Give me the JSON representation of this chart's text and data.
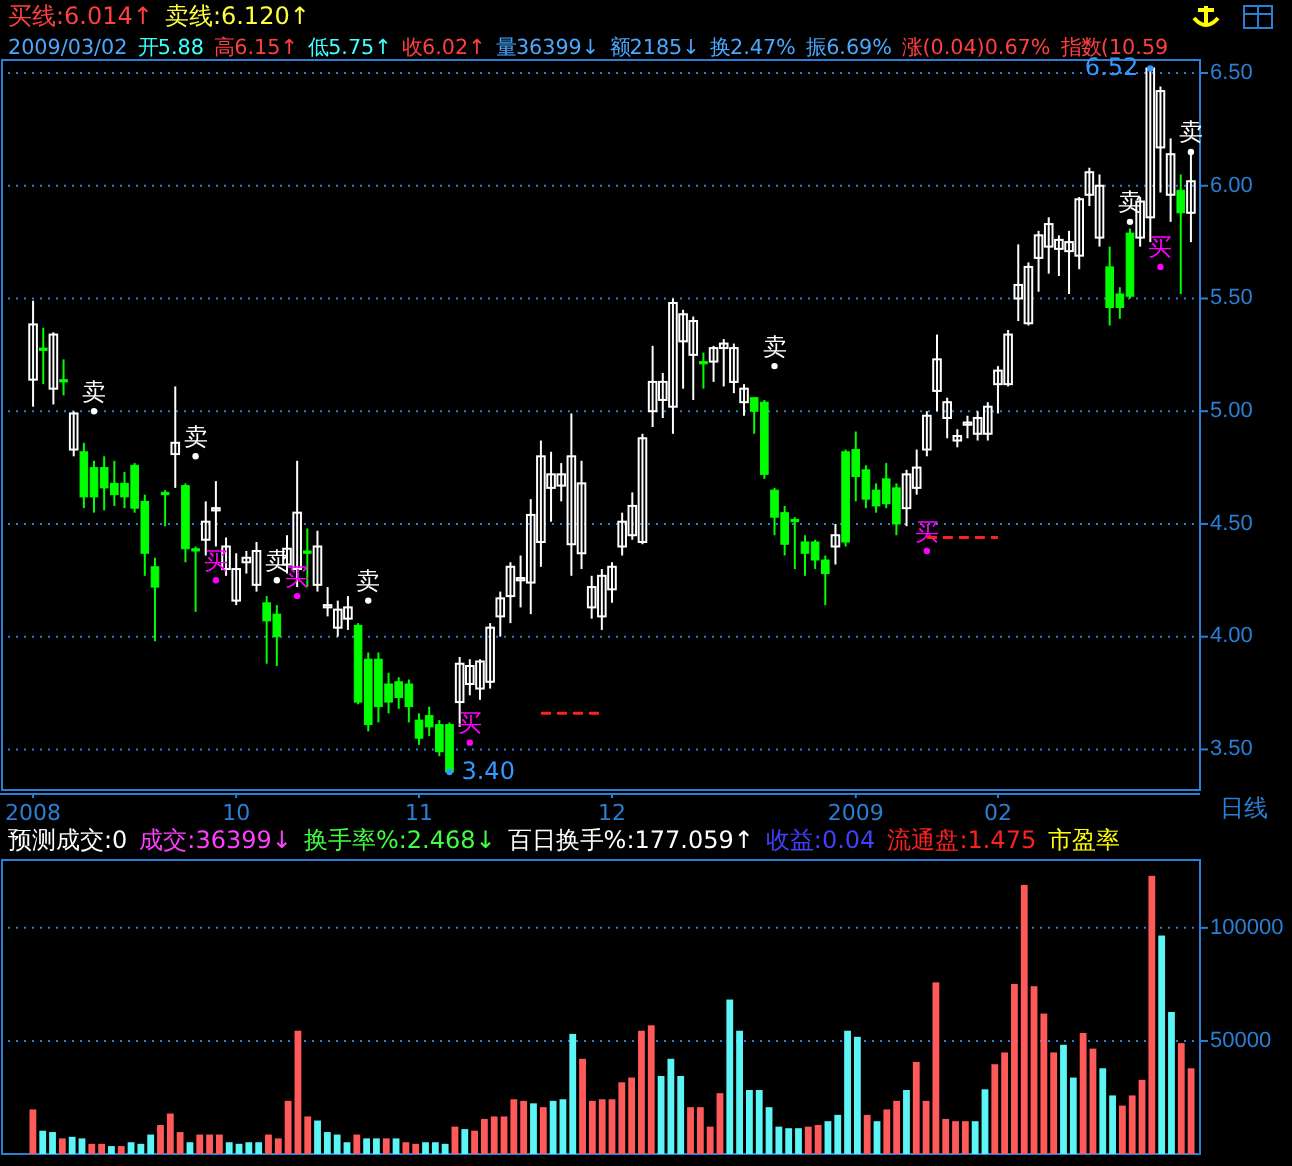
{
  "chart_data": [
    {
      "type": "candlestick",
      "categories": [
        "2008",
        null,
        null,
        null,
        null,
        null,
        null,
        null,
        null,
        null,
        null,
        null,
        null,
        null,
        null,
        null,
        null,
        null,
        null,
        null,
        "10",
        null,
        null,
        null,
        null,
        null,
        null,
        null,
        null,
        null,
        null,
        null,
        null,
        null,
        null,
        null,
        null,
        null,
        "11",
        null,
        null,
        null,
        null,
        null,
        null,
        null,
        null,
        null,
        null,
        null,
        null,
        null,
        null,
        null,
        null,
        null,
        null,
        "12",
        null,
        null,
        null,
        null,
        null,
        null,
        null,
        null,
        null,
        null,
        null,
        null,
        null,
        null,
        null,
        null,
        null,
        null,
        null,
        null,
        null,
        null,
        null,
        "2009",
        null,
        null,
        null,
        null,
        null,
        null,
        null,
        null,
        null,
        null,
        null,
        null,
        null,
        "02",
        null,
        null,
        null,
        null,
        null,
        null,
        null,
        null,
        null,
        null,
        null,
        null,
        null,
        null,
        null,
        null,
        null,
        null,
        null
      ],
      "ohlc": [
        [
          5.14,
          5.49,
          5.02,
          5.385
        ],
        [
          5.28,
          5.37,
          5.12,
          5.27
        ],
        [
          5.1,
          5.35,
          5.03,
          5.34
        ],
        [
          5.14,
          5.23,
          5.07,
          5.13
        ],
        [
          4.83,
          5.0,
          4.8,
          4.99
        ],
        [
          4.82,
          4.86,
          4.57,
          4.62
        ],
        [
          4.75,
          4.78,
          4.55,
          4.62
        ],
        [
          4.75,
          4.8,
          4.56,
          4.66
        ],
        [
          4.68,
          4.78,
          4.58,
          4.63
        ],
        [
          4.68,
          4.73,
          4.57,
          4.62
        ],
        [
          4.76,
          4.77,
          4.55,
          4.57
        ],
        [
          4.6,
          4.63,
          4.27,
          4.37
        ],
        [
          4.31,
          4.35,
          3.98,
          4.22
        ],
        [
          4.64,
          4.65,
          4.49,
          4.63
        ],
        [
          4.81,
          5.11,
          4.66,
          4.86
        ],
        [
          4.67,
          4.68,
          4.33,
          4.39
        ],
        [
          4.39,
          4.4,
          4.11,
          4.38
        ],
        [
          4.43,
          4.6,
          4.36,
          4.51
        ],
        [
          4.56,
          4.69,
          4.4,
          4.57
        ],
        [
          4.3,
          4.44,
          4.27,
          4.4
        ],
        [
          4.16,
          4.37,
          4.14,
          4.3
        ],
        [
          4.33,
          4.38,
          4.28,
          4.35
        ],
        [
          4.23,
          4.42,
          4.2,
          4.38
        ],
        [
          4.15,
          4.18,
          3.88,
          4.07
        ],
        [
          4.1,
          4.14,
          3.87,
          4.0
        ],
        [
          4.32,
          4.45,
          4.28,
          4.39
        ],
        [
          4.3,
          4.78,
          4.22,
          4.55
        ],
        [
          4.38,
          4.48,
          4.22,
          4.37
        ],
        [
          4.23,
          4.47,
          4.2,
          4.4
        ],
        [
          4.13,
          4.22,
          4.09,
          4.14
        ],
        [
          4.04,
          4.16,
          4.0,
          4.12
        ],
        [
          4.08,
          4.18,
          4.03,
          4.13
        ],
        [
          4.05,
          4.06,
          3.7,
          3.71
        ],
        [
          3.9,
          3.93,
          3.58,
          3.61
        ],
        [
          3.9,
          3.93,
          3.62,
          3.69
        ],
        [
          3.79,
          3.84,
          3.66,
          3.71
        ],
        [
          3.8,
          3.82,
          3.68,
          3.73
        ],
        [
          3.79,
          3.81,
          3.62,
          3.69
        ],
        [
          3.63,
          3.66,
          3.52,
          3.55
        ],
        [
          3.65,
          3.69,
          3.56,
          3.6
        ],
        [
          3.61,
          3.63,
          3.47,
          3.49
        ],
        [
          3.61,
          3.62,
          3.4,
          3.4
        ],
        [
          3.71,
          3.91,
          3.6,
          3.88
        ],
        [
          3.79,
          3.9,
          3.74,
          3.87
        ],
        [
          3.77,
          3.9,
          3.72,
          3.89
        ],
        [
          3.8,
          4.06,
          3.77,
          4.04
        ],
        [
          4.09,
          4.2,
          4.0,
          4.17
        ],
        [
          4.18,
          4.33,
          4.06,
          4.31
        ],
        [
          4.25,
          4.36,
          4.13,
          4.26
        ],
        [
          4.24,
          4.61,
          4.1,
          4.54
        ],
        [
          4.42,
          4.87,
          4.31,
          4.8
        ],
        [
          4.66,
          4.82,
          4.51,
          4.72
        ],
        [
          4.67,
          4.77,
          4.6,
          4.72
        ],
        [
          4.41,
          4.99,
          4.27,
          4.8
        ],
        [
          4.37,
          4.78,
          4.3,
          4.68
        ],
        [
          4.13,
          4.27,
          4.08,
          4.22
        ],
        [
          4.09,
          4.3,
          4.03,
          4.27
        ],
        [
          4.21,
          4.33,
          4.15,
          4.31
        ],
        [
          4.4,
          4.55,
          4.36,
          4.51
        ],
        [
          4.45,
          4.64,
          4.43,
          4.58
        ],
        [
          4.42,
          4.9,
          4.41,
          4.88
        ],
        [
          5.0,
          5.29,
          4.93,
          5.13
        ],
        [
          5.05,
          5.17,
          4.97,
          5.13
        ],
        [
          5.02,
          5.5,
          4.9,
          5.48
        ],
        [
          5.31,
          5.45,
          5.1,
          5.43
        ],
        [
          5.25,
          5.42,
          5.05,
          5.4
        ],
        [
          5.22,
          5.26,
          5.1,
          5.21
        ],
        [
          5.22,
          5.29,
          5.13,
          5.28
        ],
        [
          5.28,
          5.32,
          5.11,
          5.3
        ],
        [
          5.13,
          5.3,
          5.08,
          5.28
        ],
        [
          5.04,
          5.12,
          4.98,
          5.1
        ],
        [
          5.06,
          5.06,
          4.9,
          5.0
        ],
        [
          5.04,
          5.05,
          4.7,
          4.72
        ],
        [
          4.65,
          4.66,
          4.45,
          4.53
        ],
        [
          4.55,
          4.58,
          4.36,
          4.41
        ],
        [
          4.52,
          4.53,
          4.3,
          4.51
        ],
        [
          4.42,
          4.45,
          4.27,
          4.37
        ],
        [
          4.42,
          4.43,
          4.3,
          4.34
        ],
        [
          4.34,
          4.36,
          4.14,
          4.28
        ],
        [
          4.4,
          4.5,
          4.32,
          4.45
        ],
        [
          4.82,
          4.83,
          4.4,
          4.42
        ],
        [
          4.83,
          4.91,
          4.6,
          4.71
        ],
        [
          4.74,
          4.76,
          4.57,
          4.61
        ],
        [
          4.65,
          4.68,
          4.55,
          4.58
        ],
        [
          4.7,
          4.77,
          4.57,
          4.59
        ],
        [
          4.66,
          4.68,
          4.45,
          4.5
        ],
        [
          4.57,
          4.74,
          4.49,
          4.72
        ],
        [
          4.66,
          4.83,
          4.63,
          4.75
        ],
        [
          4.83,
          5.0,
          4.8,
          4.98
        ],
        [
          5.09,
          5.34,
          5.0,
          5.23
        ],
        [
          4.97,
          5.06,
          4.88,
          5.04
        ],
        [
          4.87,
          4.92,
          4.84,
          4.89
        ],
        [
          4.94,
          4.98,
          4.88,
          4.95
        ],
        [
          4.9,
          5.0,
          4.87,
          4.97
        ],
        [
          4.9,
          5.04,
          4.87,
          5.02
        ],
        [
          5.12,
          5.2,
          4.99,
          5.18
        ],
        [
          5.12,
          5.36,
          5.11,
          5.34
        ],
        [
          5.5,
          5.74,
          5.4,
          5.56
        ],
        [
          5.39,
          5.66,
          5.38,
          5.64
        ],
        [
          5.68,
          5.8,
          5.53,
          5.78
        ],
        [
          5.73,
          5.86,
          5.61,
          5.83
        ],
        [
          5.72,
          5.78,
          5.6,
          5.76
        ],
        [
          5.71,
          5.8,
          5.52,
          5.75
        ],
        [
          5.69,
          5.95,
          5.63,
          5.94
        ],
        [
          5.96,
          6.08,
          5.91,
          6.06
        ],
        [
          5.77,
          6.05,
          5.73,
          6.0
        ],
        [
          5.64,
          5.73,
          5.38,
          5.46
        ],
        [
          5.52,
          5.55,
          5.41,
          5.46
        ],
        [
          5.79,
          5.81,
          5.5,
          5.51
        ],
        [
          5.77,
          5.95,
          5.73,
          5.93
        ],
        [
          5.86,
          6.52,
          5.75,
          6.52
        ],
        [
          6.17,
          6.44,
          5.97,
          6.42
        ],
        [
          5.96,
          6.21,
          5.84,
          6.14
        ],
        [
          5.98,
          6.05,
          5.52,
          5.88
        ],
        [
          5.88,
          6.15,
          5.75,
          6.02
        ]
      ],
      "colors": [
        "#ffffff",
        "#00ff00",
        "#ffffff",
        "#00ff00",
        "#ffffff",
        "#00ff00",
        "#00ff00",
        "#00ff00",
        "#00ff00",
        "#00ff00",
        "#00ff00",
        "#00ff00",
        "#00ff00",
        "#00ff00",
        "#ffffff",
        "#00ff00",
        "#00ff00",
        "#ffffff",
        "#ffffff",
        "#ffffff",
        "#ffffff",
        "#ffffff",
        "#ffffff",
        "#00ff00",
        "#00ff00",
        "#ffffff",
        "#ffffff",
        "#00ff00",
        "#ffffff",
        "#ffffff",
        "#ffffff",
        "#ffffff",
        "#00ff00",
        "#00ff00",
        "#00ff00",
        "#00ff00",
        "#00ff00",
        "#00ff00",
        "#00ff00",
        "#00ff00",
        "#00ff00",
        "#00ff00",
        "#ffffff",
        "#ffffff",
        "#ffffff",
        "#ffffff",
        "#ffffff",
        "#ffffff",
        "#ffffff",
        "#ffffff",
        "#ffffff",
        "#ffffff",
        "#ffffff",
        "#ffffff",
        "#ffffff",
        "#ffffff",
        "#ffffff",
        "#ffffff",
        "#ffffff",
        "#ffffff",
        "#ffffff",
        "#ffffff",
        "#ffffff",
        "#ffffff",
        "#ffffff",
        "#ffffff",
        "#00ff00",
        "#ffffff",
        "#ffffff",
        "#ffffff",
        "#ffffff",
        "#00ff00",
        "#00ff00",
        "#00ff00",
        "#00ff00",
        "#00ff00",
        "#00ff00",
        "#00ff00",
        "#00ff00",
        "#ffffff",
        "#00ff00",
        "#00ff00",
        "#00ff00",
        "#00ff00",
        "#00ff00",
        "#00ff00",
        "#ffffff",
        "#ffffff",
        "#ffffff",
        "#ffffff",
        "#ffffff",
        "#ffffff",
        "#ffffff",
        "#ffffff",
        "#ffffff",
        "#ffffff",
        "#ffffff",
        "#ffffff",
        "#ffffff",
        "#ffffff",
        "#ffffff",
        "#ffffff",
        "#ffffff",
        "#ffffff",
        "#ffffff",
        "#ffffff",
        "#00ff00",
        "#00ff00",
        "#00ff00",
        "#ffffff",
        "#ffffff",
        "#ffffff",
        "#ffffff",
        "#00ff00",
        "#ffffff"
      ],
      "series": [
        {
          "type": "scatter",
          "marker": "circle",
          "color": "#ffffff",
          "values": [
            null,
            null,
            null,
            null,
            null,
            null,
            5.0,
            null,
            null,
            null,
            null,
            null,
            null,
            null,
            null,
            null,
            4.8,
            null,
            null,
            null,
            null,
            null,
            null,
            null,
            4.25,
            null,
            null,
            null,
            null,
            null,
            null,
            null,
            null,
            4.16,
            null,
            null,
            null,
            null,
            null,
            null,
            null,
            null,
            null,
            null,
            null,
            null,
            null,
            null,
            null,
            null,
            null,
            null,
            null,
            null,
            null,
            null,
            null,
            null,
            null,
            null,
            null,
            null,
            null,
            null,
            null,
            null,
            null,
            null,
            null,
            null,
            null,
            null,
            null,
            5.2,
            null,
            null,
            null,
            null,
            null,
            null,
            null,
            null,
            null,
            null,
            null,
            null,
            null,
            null,
            null,
            null,
            null,
            null,
            null,
            null,
            null,
            null,
            null,
            null,
            null,
            null,
            null,
            null,
            null,
            null,
            null,
            null,
            null,
            null,
            5.84,
            null,
            null,
            null,
            null,
            null,
            6.15
          ],
          "value_labels": [
            null,
            null,
            null,
            null,
            null,
            null,
            "卖",
            null,
            null,
            null,
            null,
            null,
            null,
            null,
            null,
            null,
            "卖",
            null,
            null,
            null,
            null,
            null,
            null,
            null,
            "卖",
            null,
            null,
            null,
            null,
            null,
            null,
            null,
            null,
            "卖",
            null,
            null,
            null,
            null,
            null,
            null,
            null,
            null,
            null,
            null,
            null,
            null,
            null,
            null,
            null,
            null,
            null,
            null,
            null,
            null,
            null,
            null,
            null,
            null,
            null,
            null,
            null,
            null,
            null,
            null,
            null,
            null,
            null,
            null,
            null,
            null,
            null,
            null,
            null,
            "卖",
            null,
            null,
            null,
            null,
            null,
            null,
            null,
            null,
            null,
            null,
            null,
            null,
            null,
            null,
            null,
            null,
            null,
            null,
            null,
            null,
            null,
            null,
            null,
            null,
            null,
            null,
            null,
            null,
            null,
            null,
            null,
            null,
            null,
            null,
            "卖",
            null,
            null,
            null,
            null,
            null,
            "卖"
          ]
        },
        {
          "type": "scatter",
          "marker": "circle",
          "color": "#ff00ff",
          "values": [
            null,
            null,
            null,
            null,
            null,
            null,
            null,
            null,
            null,
            null,
            null,
            null,
            null,
            null,
            null,
            null,
            null,
            null,
            4.25,
            null,
            null,
            null,
            null,
            null,
            null,
            null,
            4.18,
            null,
            null,
            null,
            null,
            null,
            null,
            null,
            null,
            null,
            null,
            null,
            null,
            null,
            null,
            null,
            null,
            3.53,
            null,
            null,
            null,
            null,
            null,
            null,
            null,
            null,
            null,
            null,
            null,
            null,
            null,
            null,
            null,
            null,
            null,
            null,
            null,
            null,
            null,
            null,
            null,
            null,
            null,
            null,
            null,
            null,
            null,
            null,
            null,
            null,
            null,
            null,
            null,
            null,
            null,
            null,
            null,
            null,
            null,
            null,
            null,
            null,
            4.38,
            null,
            null,
            null,
            null,
            null,
            null,
            null,
            null,
            null,
            null,
            null,
            null,
            null,
            null,
            null,
            null,
            null,
            null,
            null,
            null,
            null,
            null,
            5.64,
            null,
            null,
            null
          ],
          "value_labels": [
            null,
            null,
            null,
            null,
            null,
            null,
            null,
            null,
            null,
            null,
            null,
            null,
            null,
            null,
            null,
            null,
            null,
            null,
            "买",
            null,
            null,
            null,
            null,
            null,
            null,
            null,
            "买",
            null,
            null,
            null,
            null,
            null,
            null,
            null,
            null,
            null,
            null,
            null,
            null,
            null,
            null,
            null,
            null,
            "买",
            null,
            null,
            null,
            null,
            null,
            null,
            null,
            null,
            null,
            null,
            null,
            null,
            null,
            null,
            null,
            null,
            null,
            null,
            null,
            null,
            null,
            null,
            null,
            null,
            null,
            null,
            null,
            null,
            null,
            null,
            null,
            null,
            null,
            null,
            null,
            null,
            null,
            null,
            null,
            null,
            null,
            null,
            null,
            null,
            "买",
            null,
            null,
            null,
            null,
            null,
            null,
            null,
            null,
            null,
            null,
            null,
            null,
            null,
            null,
            null,
            null,
            null,
            null,
            null,
            null,
            null,
            null,
            "买",
            null,
            null,
            null
          ]
        },
        {
          "type": "scatter",
          "marker": "circle",
          "color": "#3399ff",
          "values": [
            null,
            null,
            null,
            null,
            null,
            null,
            null,
            null,
            null,
            null,
            null,
            null,
            null,
            null,
            null,
            null,
            null,
            null,
            null,
            null,
            null,
            null,
            null,
            null,
            null,
            null,
            null,
            null,
            null,
            null,
            null,
            null,
            null,
            null,
            null,
            null,
            null,
            null,
            null,
            null,
            null,
            3.4,
            null,
            null,
            null,
            null,
            null,
            null,
            null,
            null,
            null,
            null,
            null,
            null,
            null,
            null,
            null,
            null,
            null,
            null,
            null,
            null,
            null,
            null,
            null,
            null,
            null,
            null,
            null,
            null,
            null,
            null,
            null,
            null,
            null,
            null,
            null,
            null,
            null,
            null,
            null,
            null,
            null,
            null,
            null,
            null,
            null,
            null,
            null,
            null,
            null,
            null,
            null,
            null,
            null,
            null,
            null,
            null,
            null,
            null,
            null,
            null,
            null,
            null,
            null,
            null,
            null,
            null,
            null,
            null,
            6.52,
            null,
            null,
            null,
            null
          ],
          "value_labels": [
            null,
            null,
            null,
            null,
            null,
            null,
            null,
            null,
            null,
            null,
            null,
            null,
            null,
            null,
            null,
            null,
            null,
            null,
            null,
            null,
            null,
            null,
            null,
            null,
            null,
            null,
            null,
            null,
            null,
            null,
            null,
            null,
            null,
            null,
            null,
            null,
            null,
            null,
            null,
            null,
            null,
            "3.40",
            null,
            null,
            null,
            null,
            null,
            null,
            null,
            null,
            null,
            null,
            null,
            null,
            null,
            null,
            null,
            null,
            null,
            null,
            null,
            null,
            null,
            null,
            null,
            null,
            null,
            null,
            null,
            null,
            null,
            null,
            null,
            null,
            null,
            null,
            null,
            null,
            null,
            null,
            null,
            null,
            null,
            null,
            null,
            null,
            null,
            null,
            null,
            null,
            null,
            null,
            null,
            null,
            null,
            null,
            null,
            null,
            null,
            null,
            null,
            null,
            null,
            null,
            null,
            null,
            null,
            null,
            null,
            null,
            "6.52",
            null,
            null,
            null,
            null
          ]
        },
        {
          "type": "line",
          "line_style": "dashed",
          "color": "#ff2020",
          "values": [
            null,
            null,
            null,
            null,
            null,
            null,
            null,
            null,
            null,
            null,
            null,
            null,
            null,
            null,
            null,
            null,
            null,
            null,
            null,
            null,
            null,
            null,
            null,
            null,
            null,
            null,
            null,
            null,
            null,
            null,
            null,
            null,
            null,
            null,
            null,
            null,
            null,
            null,
            null,
            null,
            null,
            null,
            null,
            null,
            null,
            null,
            null,
            null,
            null,
            null,
            3.66,
            3.66,
            3.66,
            3.66,
            3.66,
            3.66,
            3.66,
            null,
            null,
            null,
            null,
            null,
            null,
            null,
            null,
            null,
            null,
            null,
            null,
            null,
            null,
            null,
            null,
            null,
            null,
            null,
            null,
            null,
            null,
            null,
            null,
            null,
            null,
            null,
            null,
            null,
            null,
            null,
            4.44,
            4.44,
            4.44,
            4.44,
            4.44,
            4.44,
            4.44,
            4.44,
            null,
            null,
            null,
            null,
            null,
            null,
            null,
            null,
            null,
            null,
            null,
            null,
            null,
            null,
            null,
            null,
            null,
            null,
            null
          ]
        }
      ],
      "ylim": [
        3.32,
        6.54
      ],
      "yticks": [
        {
          "value": 3.5,
          "label": "3.50"
        },
        {
          "value": 4.0,
          "label": "4.00"
        },
        {
          "value": 4.5,
          "label": "4.50"
        },
        {
          "value": 5.0,
          "label": "5.00"
        },
        {
          "value": 5.5,
          "label": "5.50"
        },
        {
          "value": 6.0,
          "label": "6.00"
        },
        {
          "value": 6.5,
          "label": "6.50"
        }
      ],
      "grid": "y",
      "annotations": [
        "买线:6.014↑",
        "卖线:6.120↑",
        "2009/03/02",
        "开5.88",
        "高6.15↑",
        "低5.75↑",
        "收6.02↑",
        "量36399↓",
        "额2185↓",
        "换2.47%",
        "振6.69%",
        "涨(0.04)0.67%",
        "指数(10.59",
        "日线"
      ]
    },
    {
      "type": "bar",
      "categories": [
        null,
        null,
        null,
        null,
        null,
        null,
        null,
        null,
        null,
        null,
        null,
        null,
        null,
        null,
        null,
        null,
        null,
        null,
        null,
        null,
        null,
        null,
        null,
        null,
        null,
        null,
        null,
        null,
        null,
        null,
        null,
        null,
        null,
        null,
        null,
        null,
        null,
        null,
        null,
        null,
        null,
        null,
        null,
        null,
        null,
        null,
        null,
        null,
        null,
        null,
        null,
        null,
        null,
        null,
        null,
        null,
        null,
        null,
        null,
        null,
        null,
        null,
        null,
        null,
        null,
        null,
        null,
        null,
        null,
        null,
        null,
        null,
        null,
        null,
        null,
        null,
        null,
        null,
        null,
        null,
        null,
        null,
        null,
        null,
        null,
        null,
        null,
        null,
        null,
        null,
        null,
        null,
        null,
        null,
        null,
        null,
        null,
        null,
        null,
        null,
        null,
        null,
        null,
        null,
        null,
        null,
        null,
        null,
        null,
        null,
        null,
        null,
        null,
        null,
        null,
        null,
        null,
        null,
        null
      ],
      "values": [
        19700,
        10300,
        9700,
        6900,
        7600,
        6900,
        4500,
        4500,
        3500,
        3500,
        5200,
        4500,
        8600,
        12800,
        17900,
        9700,
        5200,
        8600,
        8600,
        8600,
        5200,
        4500,
        5200,
        5200,
        8600,
        6900,
        23500,
        54500,
        16600,
        14800,
        9700,
        8600,
        5200,
        8600,
        6900,
        6900,
        6900,
        6900,
        5200,
        4500,
        5200,
        5200,
        4500,
        12100,
        11000,
        10300,
        15500,
        16600,
        16600,
        24200,
        23500,
        22400,
        20700,
        23500,
        24200,
        53100,
        42100,
        23500,
        24200,
        24200,
        31700,
        33800,
        54500,
        56900,
        34500,
        42100,
        34500,
        20700,
        20700,
        12100,
        26900,
        68300,
        54500,
        28300,
        28300,
        20700,
        12100,
        11400,
        11400,
        12100,
        12800,
        14500,
        17300,
        54500,
        51800,
        17300,
        14500,
        19700,
        23500,
        28300,
        40700,
        23500,
        75900,
        15500,
        14500,
        14500,
        14500,
        28600,
        39700,
        44900,
        75200,
        119000,
        74200,
        62100,
        44900,
        48300,
        33800,
        53500,
        46600,
        37900,
        25900,
        21400,
        25900,
        32800,
        123000,
        96600,
        62800,
        49000,
        37900
      ],
      "colors": [
        "#ff5a5a",
        "#5cf5f5",
        "#5cf5f5",
        "#ff5a5a",
        "#5cf5f5",
        "#5cf5f5",
        "#ff5a5a",
        "#ff5a5a",
        "#5cf5f5",
        "#ff5a5a",
        "#5cf5f5",
        "#5cf5f5",
        "#5cf5f5",
        "#ff5a5a",
        "#ff5a5a",
        "#ff5a5a",
        "#5cf5f5",
        "#ff5a5a",
        "#ff5a5a",
        "#ff5a5a",
        "#5cf5f5",
        "#5cf5f5",
        "#5cf5f5",
        "#5cf5f5",
        "#ff5a5a",
        "#ff5a5a",
        "#ff5a5a",
        "#ff5a5a",
        "#ff5a5a",
        "#5cf5f5",
        "#5cf5f5",
        "#5cf5f5",
        "#5cf5f5",
        "#ff5a5a",
        "#5cf5f5",
        "#5cf5f5",
        "#ff5a5a",
        "#5cf5f5",
        "#ff5a5a",
        "#ff5a5a",
        "#5cf5f5",
        "#5cf5f5",
        "#5cf5f5",
        "#ff5a5a",
        "#5cf5f5",
        "#ff5a5a",
        "#ff5a5a",
        "#ff5a5a",
        "#ff5a5a",
        "#ff5a5a",
        "#ff5a5a",
        "#5cf5f5",
        "#ff5a5a",
        "#5cf5f5",
        "#5cf5f5",
        "#5cf5f5",
        "#ff5a5a",
        "#ff5a5a",
        "#ff5a5a",
        "#ff5a5a",
        "#ff5a5a",
        "#ff5a5a",
        "#ff5a5a",
        "#ff5a5a",
        "#5cf5f5",
        "#5cf5f5",
        "#5cf5f5",
        "#ff5a5a",
        "#ff5a5a",
        "#ff5a5a",
        "#ff5a5a",
        "#5cf5f5",
        "#5cf5f5",
        "#5cf5f5",
        "#5cf5f5",
        "#5cf5f5",
        "#5cf5f5",
        "#5cf5f5",
        "#5cf5f5",
        "#ff5a5a",
        "#ff5a5a",
        "#5cf5f5",
        "#5cf5f5",
        "#5cf5f5",
        "#5cf5f5",
        "#ff5a5a",
        "#5cf5f5",
        "#ff5a5a",
        "#ff5a5a",
        "#5cf5f5",
        "#ff5a5a",
        "#ff5a5a",
        "#ff5a5a",
        "#ff5a5a",
        "#ff5a5a",
        "#ff5a5a",
        "#5cf5f5",
        "#5cf5f5",
        "#ff5a5a",
        "#ff5a5a",
        "#ff5a5a",
        "#ff5a5a",
        "#ff5a5a",
        "#ff5a5a",
        "#ff5a5a",
        "#5cf5f5",
        "#5cf5f5",
        "#ff5a5a",
        "#ff5a5a",
        "#5cf5f5",
        "#5cf5f5",
        "#ff5a5a",
        "#ff5a5a",
        "#ff5a5a",
        "#ff5a5a",
        "#5cf5f5",
        "#5cf5f5",
        "#ff5a5a",
        "#ff5a5a"
      ],
      "ylim": [
        0,
        130000
      ],
      "yticks": [
        50000,
        100000
      ],
      "grid": "y",
      "tick_labels": "y",
      "annotations": [
        "预测成交:0",
        "成交:36399↓",
        "换手率%:2.468↓",
        "百日换手%:177.059↑",
        "收益:0.04",
        "流通盘:1.475",
        "市盈率"
      ]
    }
  ]
}
